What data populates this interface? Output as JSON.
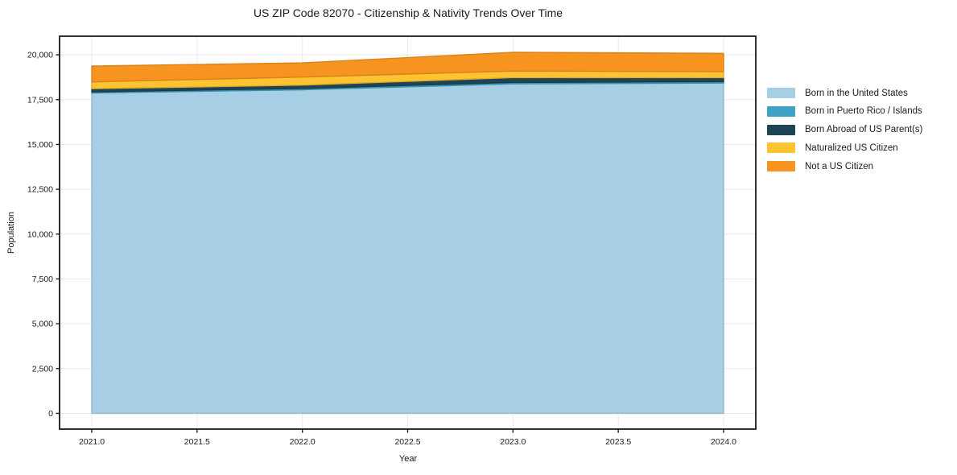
{
  "chart": {
    "title": "US ZIP Code 82070 - Citizenship & Nativity Trends Over Time",
    "xlabel": "Year",
    "ylabel": "Population"
  },
  "chart_data": {
    "type": "area",
    "stacked": true,
    "title": "US ZIP Code 82070 - Citizenship & Nativity Trends Over Time",
    "xlabel": "Year",
    "ylabel": "Population",
    "x": [
      2021,
      2022,
      2023,
      2024
    ],
    "series": [
      {
        "name": "Born in the United States",
        "color": "#a6cfe6",
        "values": [
          17870,
          18050,
          18380,
          18430
        ]
      },
      {
        "name": "Born in Puerto Rico / Islands",
        "color": "#3fa2c2",
        "values": [
          65,
          75,
          80,
          75
        ]
      },
      {
        "name": "Born Abroad of US Parent(s)",
        "color": "#1f4455",
        "values": [
          175,
          185,
          270,
          225
        ]
      },
      {
        "name": "Naturalized US Citizen",
        "color": "#fdc330",
        "values": [
          380,
          450,
          370,
          330
        ]
      },
      {
        "name": "Not a US Citizen",
        "color": "#f79420",
        "values": [
          885,
          790,
          1040,
          1020
        ]
      }
    ],
    "totals": [
      19375,
      19550,
      20140,
      20080
    ],
    "x_ticks": [
      2021.0,
      2021.5,
      2022.0,
      2022.5,
      2023.0,
      2023.5,
      2024.0
    ],
    "x_tick_labels": [
      "2021.0",
      "2021.5",
      "2022.0",
      "2022.5",
      "2023.0",
      "2023.5",
      "2024.0"
    ],
    "y_ticks": [
      0,
      2500,
      5000,
      7500,
      10000,
      12500,
      15000,
      17500,
      20000
    ],
    "y_tick_labels": [
      "0",
      "2,500",
      "5,000",
      "7,500",
      "10,000",
      "12,500",
      "15,000",
      "17,500",
      "20,000"
    ],
    "xlim": [
      2020.847,
      2024.153
    ],
    "ylim": [
      -878,
      21038
    ],
    "grid": true,
    "legend_position": "right"
  },
  "colors": {
    "background": "#ffffff",
    "grid": "#e9e9e9",
    "spine": "#1a1a1a",
    "text": "#1a1a1a"
  }
}
